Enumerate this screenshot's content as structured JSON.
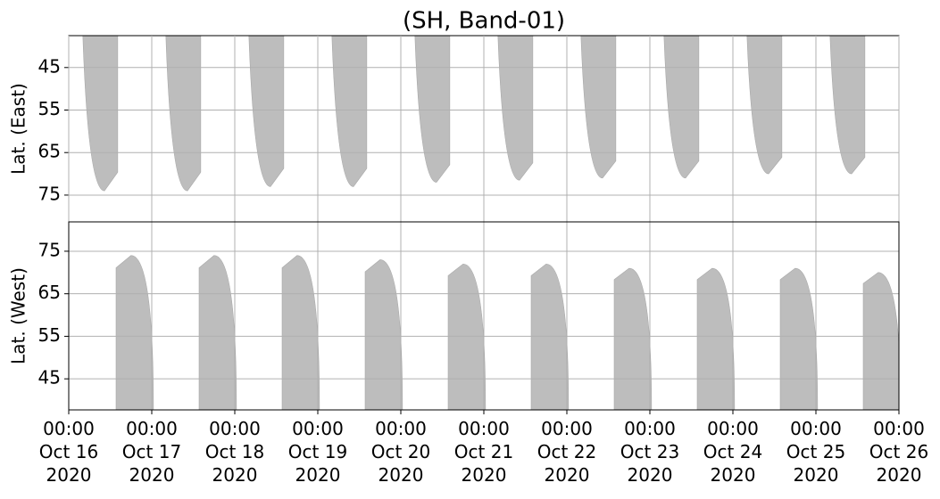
{
  "chart_data": [
    {
      "type": "area",
      "title": "(SH, Band-01)",
      "ylabel": "Lat. (East)",
      "grid": true,
      "color": "#bdbdbd",
      "xlim": [
        16,
        26
      ],
      "ylim": [
        81.3,
        37.5
      ],
      "yticks": [
        45,
        55,
        65,
        75
      ],
      "x_start": [
        16.17,
        17.17,
        18.17,
        19.17,
        20.17,
        21.17,
        22.17,
        23.17,
        24.17,
        25.17
      ],
      "x": [
        16.43,
        17.43,
        18.43,
        19.43,
        20.43,
        21.43,
        22.43,
        23.43,
        24.43,
        25.43
      ],
      "x_end": [
        16.59,
        17.59,
        18.59,
        19.59,
        20.59,
        21.59,
        22.59,
        23.59,
        24.59,
        25.59
      ],
      "values": [
        74,
        74,
        73,
        73,
        72,
        71.5,
        71,
        71,
        70,
        70
      ]
    },
    {
      "type": "area",
      "ylabel": "Lat. (West)",
      "grid": true,
      "color": "#bdbdbd",
      "xlim": [
        16,
        26
      ],
      "ylim": [
        37.7,
        81.9
      ],
      "yticks": [
        45,
        55,
        65,
        75
      ],
      "xticks": [
        {
          "value": 16,
          "label": "00:00\nOct 16\n2020"
        },
        {
          "value": 17,
          "label": "00:00\nOct 17\n2020"
        },
        {
          "value": 18,
          "label": "00:00\nOct 18\n2020"
        },
        {
          "value": 19,
          "label": "00:00\nOct 19\n2020"
        },
        {
          "value": 20,
          "label": "00:00\nOct 20\n2020"
        },
        {
          "value": 21,
          "label": "00:00\nOct 21\n2020"
        },
        {
          "value": 22,
          "label": "00:00\nOct 22\n2020"
        },
        {
          "value": 23,
          "label": "00:00\nOct 23\n2020"
        },
        {
          "value": 24,
          "label": "00:00\nOct 24\n2020"
        },
        {
          "value": 25,
          "label": "00:00\nOct 25\n2020"
        },
        {
          "value": 26,
          "label": "00:00\nOct 26\n2020"
        }
      ],
      "x_start": [
        16.57,
        17.57,
        18.57,
        19.57,
        20.57,
        21.57,
        22.57,
        23.57,
        24.57,
        25.57
      ],
      "x": [
        16.75,
        17.75,
        18.75,
        19.75,
        20.75,
        21.75,
        22.75,
        23.75,
        24.75,
        25.75
      ],
      "x_end": [
        17.02,
        18.02,
        19.02,
        20.02,
        21.02,
        22.02,
        23.02,
        24.02,
        25.02,
        26.02
      ],
      "values": [
        74,
        74,
        74,
        73,
        72,
        72,
        71,
        71,
        71,
        70
      ]
    }
  ]
}
